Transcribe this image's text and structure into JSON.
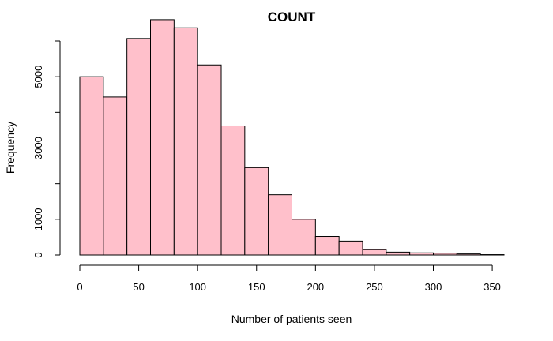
{
  "chart_data": {
    "type": "bar",
    "title": "COUNT",
    "xlabel": "Number of patients seen",
    "ylabel": "Frequency",
    "bar_color": "#ffc0cb",
    "xlim": [
      0,
      360
    ],
    "ylim": [
      0,
      6000
    ],
    "x_ticks": [
      0,
      50,
      100,
      150,
      200,
      250,
      300,
      350
    ],
    "y_ticks": [
      0,
      1000,
      3000,
      5000
    ],
    "bin_edges": [
      0,
      20,
      40,
      60,
      80,
      100,
      120,
      140,
      160,
      180,
      200,
      220,
      240,
      260,
      280,
      300,
      320,
      340,
      360
    ],
    "values": [
      5000,
      4430,
      6070,
      6600,
      6370,
      5330,
      3620,
      2450,
      1690,
      1000,
      520,
      390,
      150,
      80,
      60,
      50,
      30,
      10
    ]
  }
}
